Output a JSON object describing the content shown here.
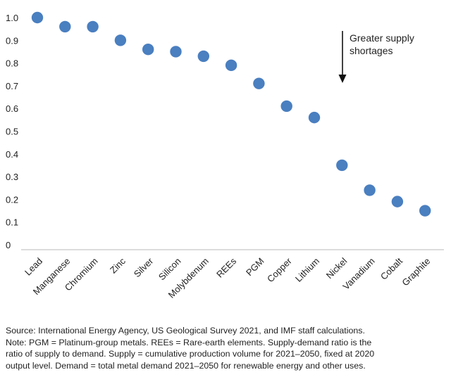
{
  "chart_data": {
    "type": "scatter",
    "title": "",
    "xlabel": "",
    "ylabel": "",
    "ylim": [
      0,
      1.0
    ],
    "yticks": [
      "0",
      "0.1",
      "0.2",
      "0.3",
      "0.4",
      "0.5",
      "0.6",
      "0.7",
      "0.8",
      "0.9",
      "1.0"
    ],
    "grid": false,
    "categories": [
      "Lead",
      "Manganese",
      "Chromium",
      "Zinc",
      "Silver",
      "Silicon",
      "Molybdenum",
      "REEs",
      "PGM",
      "Copper",
      "Lithium",
      "Nickel",
      "Vanadium",
      "Cobalt",
      "Graphite"
    ],
    "values": [
      1.0,
      0.96,
      0.96,
      0.9,
      0.86,
      0.85,
      0.83,
      0.79,
      0.71,
      0.61,
      0.56,
      0.35,
      0.24,
      0.19,
      0.15
    ],
    "annotation": {
      "lines": [
        "Greater supply",
        "shortages"
      ],
      "arrow": "down"
    },
    "point_color": "#4a7fc0"
  },
  "notes": {
    "line1": "Source: International Energy Agency, US Geological Survey 2021, and IMF staff calculations.",
    "line2": "Note: PGM = Platinum-group metals. REEs = Rare-earth elements. Supply-demand ratio is the",
    "line3": "ratio of supply to demand. Supply = cumulative production volume for 2021–2050, fixed at 2020",
    "line4": "output level. Demand = total metal demand 2021–2050 for renewable energy and other uses."
  }
}
